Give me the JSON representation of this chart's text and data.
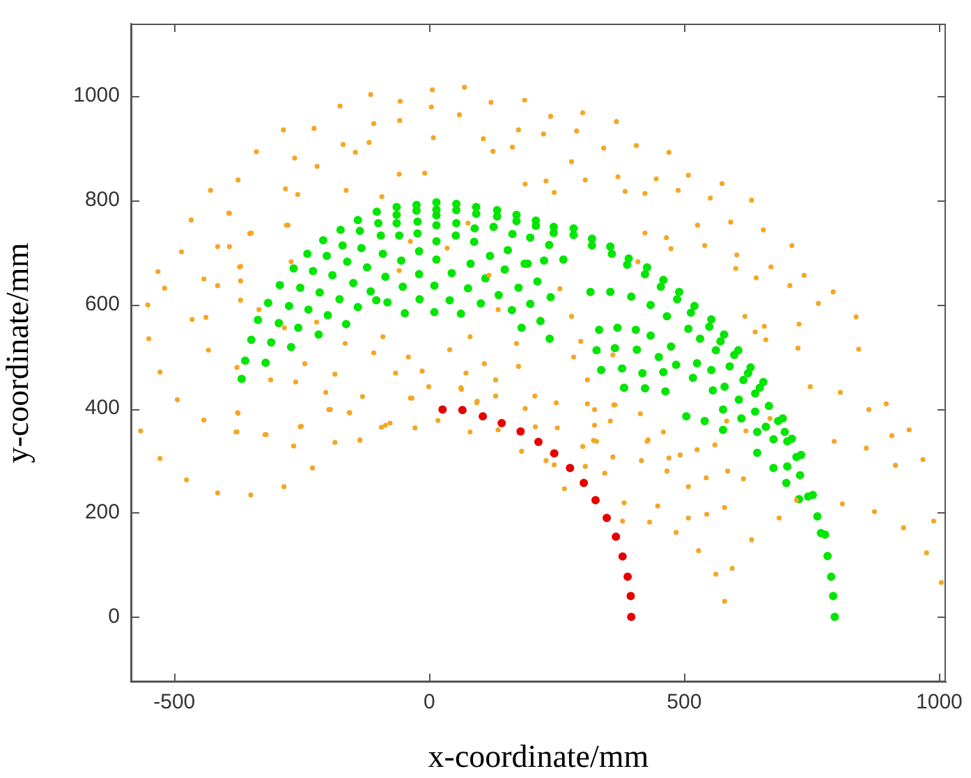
{
  "chart_data": {
    "type": "scatter",
    "xlabel": "x-coordinate/mm",
    "ylabel": "y-coordinate/mm",
    "xlim": [
      -585,
      1013
    ],
    "ylim": [
      -125,
      1139
    ],
    "xticks": [
      -500,
      0,
      500,
      1000
    ],
    "yticks": [
      0,
      200,
      400,
      600,
      800,
      1000
    ],
    "grid": false,
    "legend": false,
    "marker": "circle",
    "series": [
      {
        "color": "#f5a623",
        "x": [
          6,
          69,
          -115,
          -57,
          4,
          -175,
          59,
          -109,
          -58,
          8,
          -286,
          -226,
          -169,
          -118,
          -145,
          -339,
          -264,
          -220,
          -59,
          -9,
          -375,
          -429,
          -282,
          -258,
          -163,
          -93,
          -393,
          -467,
          -277,
          -352,
          -486,
          -415,
          -372,
          -532,
          -519,
          -442,
          -552,
          -415,
          -370,
          -465,
          -438,
          -550,
          -528,
          -433,
          -377,
          -494,
          -566,
          -528,
          -476,
          -415,
          -350,
          -285,
          -229,
          -266,
          -375,
          -377,
          -442,
          -322,
          -251,
          -197,
          -185,
          -136,
          -157,
          -131,
          -94,
          -77,
          -28,
          -34,
          17,
          80,
          93,
          62,
          121,
          187,
          238,
          301,
          367,
          175,
          224,
          289,
          106,
          125,
          163,
          279,
          342,
          406,
          470,
          188,
          229,
          245,
          306,
          370,
          384,
          423,
          445,
          508,
          488,
          574,
          551,
          632,
          655,
          591,
          526,
          540,
          465,
          474,
          423,
          711,
          670,
          735,
          601,
          603,
          641,
          707,
          792,
          763,
          837,
          842,
          725,
          723,
          657,
          660,
          619,
          130,
          188,
          249,
          310,
          364,
          806,
          862,
          896,
          907,
          941,
          968,
          857,
          914,
          794,
          810,
          873,
          989,
          930,
          975,
          1004,
          686,
          632,
          594,
          579,
          562,
          528,
          508,
          484,
          544,
          579,
          616,
          543,
          508,
          448,
          466,
          416,
          382,
          379,
          344,
          301,
          322,
          265,
          306,
          245,
          229,
          181,
          208,
          324,
          355,
          429,
          470,
          492,
          525,
          560,
          583,
          621,
          668,
          -280,
          -349,
          -392,
          -392,
          -370,
          -370,
          -334,
          -284,
          -262,
          -311,
          -253,
          -203,
          -185,
          -156,
          -136,
          -91,
          -109,
          -66,
          -37,
          -14,
          -1,
          40,
          72,
          63,
          94,
          108,
          130,
          135,
          175,
          207,
          -376,
          -379,
          -320,
          -194,
          -86,
          -41,
          -165,
          -244,
          -221,
          -271,
          -37,
          -59,
          35,
          76,
          117,
          135,
          171,
          80,
          256,
          279,
          297,
          283,
          310,
          324,
          360,
          362,
          409,
          414,
          427,
          459,
          585,
          432,
          360,
          328,
          251,
          639,
          747,
          720
        ],
        "values": [
          1012,
          1017,
          1003,
          990,
          979,
          981,
          964,
          947,
          953,
          920,
          935,
          938,
          907,
          911,
          892,
          893,
          881,
          865,
          850,
          852,
          839,
          819,
          822,
          811,
          819,
          807,
          775,
          762,
          752,
          736,
          701,
          711,
          672,
          663,
          631,
          649,
          599,
          636,
          645,
          571,
          575,
          534,
          470,
          512,
          479,
          417,
          357,
          304,
          263,
          238,
          234,
          250,
          286,
          328,
          391,
          355,
          378,
          350,
          366,
          398,
          335,
          340,
          392,
          423,
          364,
          372,
          363,
          420,
          377,
          355,
          411,
          440,
          988,
          992,
          961,
          968,
          951,
          935,
          927,
          933,
          918,
          894,
          902,
          874,
          900,
          905,
          892,
          831,
          837,
          815,
          839,
          845,
          817,
          813,
          841,
          848,
          819,
          832,
          804,
          800,
          743,
          758,
          752,
          713,
          728,
          707,
          737,
          713,
          672,
          656,
          669,
          695,
          651,
          636,
          624,
          602,
          576,
          514,
          562,
          516,
          558,
          532,
          577,
          424,
          400,
          411,
          409,
          407,
          431,
          398,
          409,
          348,
          359,
          302,
          324,
          291,
          337,
          217,
          202,
          184,
          171,
          123,
          66,
          190,
          148,
          93,
          30,
          82,
          127,
          190,
          162,
          197,
          210,
          265,
          267,
          250,
          213,
          280,
          300,
          219,
          184,
          276,
          327,
          339,
          246,
          289,
          292,
          300,
          318,
          365,
          368,
          376,
          340,
          305,
          311,
          321,
          330,
          376,
          357,
          381,
          752,
          737,
          775,
          711,
          673,
          608,
          590,
          555,
          451,
          455,
          365,
          431,
          466,
          392,
          339,
          538,
          507,
          468,
          420,
          472,
          442,
          513,
          468,
          437,
          414,
          486,
          455,
          359,
          481,
          424,
          392,
          355,
          350,
          398,
          368,
          499,
          525,
          486,
          566,
          682,
          721,
          665,
          708,
          756,
          656,
          590,
          525,
          538,
          630,
          577,
          529,
          499,
          455,
          398,
          503,
          407,
          682,
          390,
          337,
          355,
          280,
          182,
          307,
          337,
          363,
          547,
          442,
          224
        ]
      },
      {
        "color": "#00e600",
        "x": [
          -140,
          -103,
          -64,
          -25,
          14,
          53,
          92,
          133,
          171,
          209,
          244,
          -64,
          -25,
          14,
          14,
          53,
          92,
          133,
          171,
          209,
          244,
          -174,
          -136,
          -100,
          -64,
          -23,
          14,
          53,
          89,
          126,
          163,
          198,
          235,
          -208,
          -170,
          -133,
          -95,
          -59,
          -23,
          14,
          52,
          88,
          154,
          193,
          -239,
          -201,
          -161,
          -122,
          -91,
          -55,
          -20,
          14,
          44,
          81,
          119,
          148,
          187,
          225,
          263,
          -266,
          -228,
          -190,
          -149,
          -115,
          -86,
          -52,
          -20,
          10,
          76,
          110,
          136,
          175,
          212,
          238,
          -293,
          -253,
          -215,
          -176,
          -140,
          -104,
          -82,
          -48,
          -19,
          10,
          40,
          62,
          101,
          162,
          198,
          218,
          -316,
          -275,
          -237,
          -199,
          -163,
          181,
          236,
          -336,
          -295,
          -257,
          -217,
          -349,
          -310,
          -271,
          -361,
          -321,
          -368,
          283,
          283,
          319,
          319,
          355,
          358,
          391,
          388,
          427,
          423,
          459,
          454,
          490,
          486,
          520,
          513,
          553,
          549,
          578,
          571,
          606,
          598,
          630,
          625,
          655,
          648,
          693,
          684,
          711,
          702,
          729,
          720,
          752,
          743,
          761,
          768,
          776,
          781,
          788,
          792,
          795,
          316,
          355,
          396,
          434,
          466,
          508,
          531,
          562,
          589,
          616,
          639,
          666,
          697,
          333,
          369,
          405,
          434,
          474,
          525,
          553,
          579,
          607,
          639,
          660,
          675,
          702,
          727,
          328,
          364,
          407,
          450,
          484,
          517,
          556,
          576,
          612,
          643,
          643,
          675,
          700,
          725,
          337,
          378,
          418,
          459,
          504,
          540,
          576,
          382,
          423,
          463
        ],
        "values": [
          762,
          778,
          787,
          791,
          796,
          793,
          787,
          781,
          772,
          761,
          749,
          772,
          780,
          782,
          771,
          781,
          774,
          769,
          760,
          751,
          737,
          743,
          741,
          756,
          756,
          759,
          752,
          756,
          746,
          749,
          735,
          728,
          714,
          723,
          713,
          708,
          732,
          732,
          736,
          721,
          732,
          720,
          704,
          678,
          697,
          693,
          682,
          671,
          697,
          684,
          702,
          686,
          660,
          678,
          693,
          667,
          678,
          684,
          686,
          669,
          664,
          656,
          641,
          625,
          653,
          634,
          658,
          636,
          631,
          650,
          618,
          632,
          644,
          614,
          637,
          632,
          623,
          610,
          595,
          608,
          604,
          583,
          610,
          585,
          608,
          582,
          602,
          589,
          601,
          568,
          603,
          597,
          590,
          579,
          562,
          555,
          534,
          570,
          564,
          555,
          542,
          532,
          527,
          518,
          492,
          488,
          457,
          746,
          733,
          726,
          713,
          711,
          697,
          688,
          676,
          671,
          658,
          647,
          634,
          624,
          610,
          597,
          584,
          571,
          557,
          542,
          529,
          512,
          503,
          479,
          468,
          451,
          440,
          381,
          376,
          342,
          337,
          311,
          307,
          234,
          231,
          193,
          161,
          158,
          117,
          77,
          40,
          0,
          624,
          624,
          615,
          599,
          577,
          553,
          534,
          512,
          481,
          455,
          429,
          405,
          355,
          551,
          555,
          551,
          540,
          519,
          487,
          474,
          442,
          417,
          394,
          365,
          341,
          289,
          272,
          512,
          516,
          513,
          499,
          484,
          459,
          435,
          398,
          381,
          355,
          315,
          286,
          257,
          226,
          474,
          477,
          468,
          470,
          385,
          376,
          359,
          440,
          439,
          433
        ]
      },
      {
        "color": "#e60000",
        "x": [
          26,
          65,
          105,
          142,
          179,
          214,
          245,
          276,
          303,
          326,
          348,
          366,
          379,
          389,
          395,
          396
        ],
        "values": [
          398,
          397,
          385,
          372,
          356,
          336,
          314,
          286,
          257,
          224,
          190,
          154,
          116,
          77,
          40,
          0
        ]
      }
    ]
  }
}
